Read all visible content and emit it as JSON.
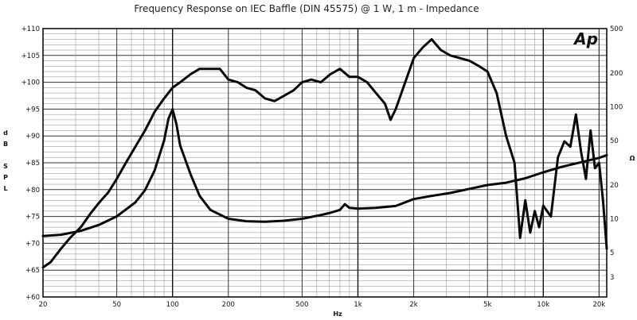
{
  "chart_data": {
    "type": "line",
    "title": "Frequency Response on IEC Baffle (DIN 45575) @ 1 W, 1 m - Impedance",
    "logo_text": "Ap",
    "xlabel": "Hz",
    "ylabel_left": [
      "d",
      "B",
      "",
      "S",
      "P",
      "L"
    ],
    "ylabel_right": "Ω",
    "x_scale": "log",
    "xlim": [
      20,
      22000
    ],
    "ylim_left": [
      60,
      110
    ],
    "ylim_right_log": [
      2,
      500
    ],
    "x_tick_labels": [
      {
        "value": 20,
        "label": "20"
      },
      {
        "value": 50,
        "label": "50"
      },
      {
        "value": 100,
        "label": "100"
      },
      {
        "value": 200,
        "label": "200"
      },
      {
        "value": 500,
        "label": "500"
      },
      {
        "value": 1000,
        "label": "1k"
      },
      {
        "value": 2000,
        "label": "2k"
      },
      {
        "value": 5000,
        "label": "5k"
      },
      {
        "value": 10000,
        "label": "10k"
      },
      {
        "value": 20000,
        "label": "20k"
      }
    ],
    "y_left_ticks": [
      {
        "value": 110,
        "label": "+110"
      },
      {
        "value": 105,
        "label": "+105"
      },
      {
        "value": 100,
        "label": "+100"
      },
      {
        "value": 95,
        "label": "+95"
      },
      {
        "value": 90,
        "label": "+90"
      },
      {
        "value": 85,
        "label": "+85"
      },
      {
        "value": 80,
        "label": "+80"
      },
      {
        "value": 75,
        "label": "+75"
      },
      {
        "value": 70,
        "label": "+70"
      },
      {
        "value": 65,
        "label": "+65"
      },
      {
        "value": 60,
        "label": "+60"
      }
    ],
    "y_right_ticks": [
      {
        "value": 500,
        "label": "500"
      },
      {
        "value": 200,
        "label": "200"
      },
      {
        "value": 100,
        "label": "100"
      },
      {
        "value": 50,
        "label": "50"
      },
      {
        "value": 20,
        "label": "20"
      },
      {
        "value": 10,
        "label": "10"
      },
      {
        "value": 5,
        "label": "5"
      },
      {
        "value": 3,
        "label": "3"
      }
    ],
    "grid": true,
    "legend": "none",
    "series": [
      {
        "axis": "left",
        "x": [
          20,
          22,
          25,
          28,
          32,
          36,
          40,
          45,
          50,
          56,
          63,
          71,
          80,
          90,
          100,
          110,
          125,
          140,
          160,
          180,
          200,
          225,
          250,
          280,
          315,
          355,
          400,
          450,
          500,
          560,
          630,
          710,
          800,
          900,
          1000,
          1120,
          1250,
          1400,
          1500,
          1600,
          1800,
          2000,
          2240,
          2500,
          2800,
          3150,
          3550,
          4000,
          4500,
          5000,
          5600,
          6300,
          7000,
          7500,
          8000,
          8500,
          9000,
          9500,
          10000,
          11000,
          12000,
          13000,
          14000,
          15000,
          16000,
          17000,
          18000,
          19000,
          20000,
          21000,
          22000
        ],
        "y": [
          65.5,
          66.5,
          69,
          71,
          73,
          75.5,
          77.5,
          79.5,
          82,
          85,
          88,
          91,
          94.5,
          97,
          99,
          100,
          101.5,
          102.5,
          102.5,
          102.5,
          100.5,
          100,
          99,
          98.5,
          97,
          96.5,
          97.5,
          98.5,
          100,
          100.5,
          100,
          101.5,
          102.5,
          101,
          101,
          100,
          98,
          96,
          93,
          95,
          100,
          104.5,
          106.5,
          108,
          106,
          105,
          104.5,
          104,
          103,
          102,
          98,
          90,
          85,
          71,
          78,
          72,
          76,
          73,
          77,
          75,
          86,
          89,
          88,
          94,
          87,
          82,
          91,
          84,
          85,
          78,
          69
        ]
      },
      {
        "axis": "right",
        "x": [
          20,
          25,
          32,
          40,
          50,
          63,
          71,
          80,
          90,
          95,
          100,
          105,
          110,
          125,
          140,
          160,
          200,
          250,
          315,
          400,
          500,
          630,
          710,
          800,
          850,
          900,
          1000,
          1250,
          1600,
          2000,
          2500,
          3150,
          4000,
          5000,
          6300,
          8000,
          10000,
          12500,
          16000,
          20000,
          22000
        ],
        "y": [
          7,
          7.2,
          7.8,
          8.8,
          10.5,
          14,
          18,
          27,
          50,
          78,
          95,
          70,
          45,
          25,
          16,
          12,
          10,
          9.5,
          9.4,
          9.6,
          10,
          10.8,
          11.3,
          12,
          13.5,
          12.5,
          12.3,
          12.5,
          13,
          15,
          16,
          17,
          18.5,
          20,
          21,
          23,
          26,
          29,
          32,
          35,
          37
        ]
      }
    ]
  }
}
